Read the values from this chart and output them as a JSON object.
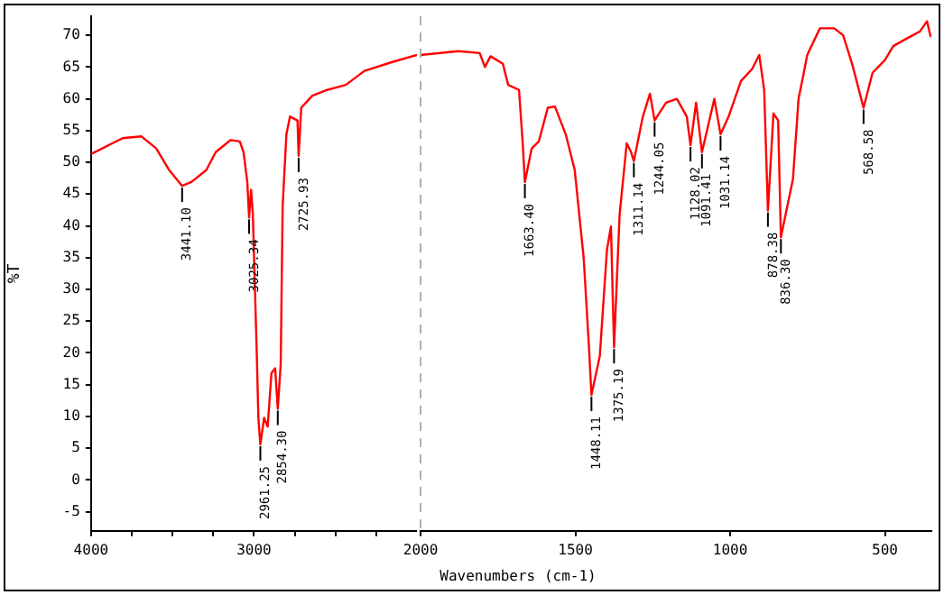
{
  "chart_data": [
    {
      "type": "line",
      "ylabel": "%T",
      "xlim": [
        4000,
        2000
      ],
      "ylim": [
        -8,
        73
      ],
      "xticks": [
        4000,
        {
          "value": 3750,
          "label": null
        },
        {
          "value": 3500,
          "label": null
        },
        {
          "value": 3250,
          "label": null
        },
        3000,
        {
          "value": 2750,
          "label": null
        },
        {
          "value": 2500,
          "label": null
        },
        {
          "value": 2250,
          "label": null
        }
      ],
      "yticks": [
        -5,
        0,
        5,
        10,
        15,
        20,
        25,
        30,
        35,
        40,
        45,
        50,
        55,
        60,
        65,
        70
      ],
      "grid": false,
      "legend": false,
      "marker": "none",
      "line_style": "solid",
      "series": [
        {
          "color": "#ff0000",
          "x": [
            4000,
            3806,
            3692,
            3600,
            3521,
            3441,
            3384,
            3292,
            3235,
            3144,
            3087,
            3064,
            3041,
            3030,
            3018,
            3007,
            2984,
            2973,
            2961,
            2938,
            2916,
            2893,
            2870,
            2854,
            2836,
            2824,
            2801,
            2779,
            2733,
            2726,
            2710,
            2642,
            2550,
            2436,
            2322,
            2151,
            2000
          ],
          "values": [
            51.3,
            53.8,
            54.1,
            52.2,
            48.8,
            46.3,
            46.9,
            48.8,
            51.6,
            53.5,
            53.3,
            51.6,
            46.9,
            41.3,
            45.7,
            41.8,
            20.9,
            9.8,
            5.6,
            9.8,
            8.4,
            16.8,
            17.6,
            11.2,
            18.2,
            43.2,
            54.4,
            57.2,
            56.6,
            51.0,
            58.6,
            60.5,
            61.4,
            62.2,
            64.4,
            65.8,
            66.9
          ]
        }
      ],
      "annotations": [
        {
          "text": "3441.10",
          "x": 3441,
          "y": 46.3
        },
        {
          "text": "3025.34",
          "x": 3030,
          "y": 41.3
        },
        {
          "text": "2961.25",
          "x": 2961,
          "y": 5.6
        },
        {
          "text": "2854.30",
          "x": 2854,
          "y": 11.2
        },
        {
          "text": "2725.93",
          "x": 2726,
          "y": 51.0
        }
      ]
    },
    {
      "type": "line",
      "xlabel": "Wavenumbers (cm-1)",
      "xlim": [
        2000,
        350
      ],
      "ylim": [
        -8,
        73
      ],
      "xticks": [
        2000,
        1500,
        1000,
        500
      ],
      "yticks": [
        -5,
        0,
        5,
        10,
        15,
        20,
        25,
        30,
        35,
        40,
        45,
        50,
        55,
        60,
        65,
        70
      ],
      "tick_labels": "x",
      "grid": false,
      "legend": false,
      "marker": "none",
      "line_style": "solid",
      "ref_lines": [
        {
          "axis": "x",
          "value": 2000,
          "color": "#b0b0b0",
          "line_style": "dashed"
        }
      ],
      "series": [
        {
          "color": "#ff0000",
          "x": [
            2000,
            1878,
            1809,
            1792,
            1774,
            1734,
            1717,
            1682,
            1670,
            1663,
            1641,
            1618,
            1589,
            1566,
            1531,
            1502,
            1473,
            1456,
            1448,
            1421,
            1398,
            1385,
            1375,
            1357,
            1334,
            1320,
            1311,
            1282,
            1259,
            1244,
            1207,
            1172,
            1140,
            1128,
            1110,
            1091,
            1051,
            1031,
            1005,
            965,
            929,
            906,
            890,
            878,
            860,
            845,
            836,
            797,
            779,
            762,
            751,
            710,
            664,
            635,
            606,
            569,
            540,
            500,
            473,
            433,
            387,
            364,
            352
          ],
          "values": [
            66.9,
            67.5,
            67.2,
            65.0,
            66.7,
            65.5,
            62.2,
            61.4,
            53.0,
            46.9,
            52.2,
            53.3,
            58.6,
            58.8,
            54.4,
            48.8,
            34.9,
            20.9,
            13.4,
            19.5,
            36.2,
            39.9,
            20.9,
            41.8,
            53.0,
            51.6,
            50.2,
            57.2,
            60.8,
            56.6,
            59.4,
            60.0,
            57.2,
            52.7,
            59.4,
            51.6,
            60.0,
            54.4,
            57.2,
            62.8,
            64.7,
            66.9,
            61.4,
            42.4,
            57.7,
            56.6,
            38.2,
            47.4,
            60.0,
            64.1,
            66.9,
            71.1,
            71.1,
            70.0,
            65.5,
            58.6,
            64.1,
            66.1,
            68.3,
            69.4,
            70.6,
            72.2,
            69.7
          ]
        }
      ],
      "annotations": [
        {
          "text": "1663.40",
          "x": 1663,
          "y": 46.9
        },
        {
          "text": "1448.11",
          "x": 1448,
          "y": 13.4
        },
        {
          "text": "1375.19",
          "x": 1375,
          "y": 20.9
        },
        {
          "text": "1311.14",
          "x": 1311,
          "y": 50.2
        },
        {
          "text": "1244.05",
          "x": 1244,
          "y": 56.6
        },
        {
          "text": "1128.02",
          "x": 1128,
          "y": 52.7
        },
        {
          "text": "1091.41",
          "x": 1091,
          "y": 51.6
        },
        {
          "text": "1031.14",
          "x": 1031,
          "y": 54.4
        },
        {
          "text": "878.38",
          "x": 878,
          "y": 42.4
        },
        {
          "text": "836.30",
          "x": 836,
          "y": 38.2
        },
        {
          "text": "568.58",
          "x": 569,
          "y": 58.6
        }
      ]
    }
  ]
}
